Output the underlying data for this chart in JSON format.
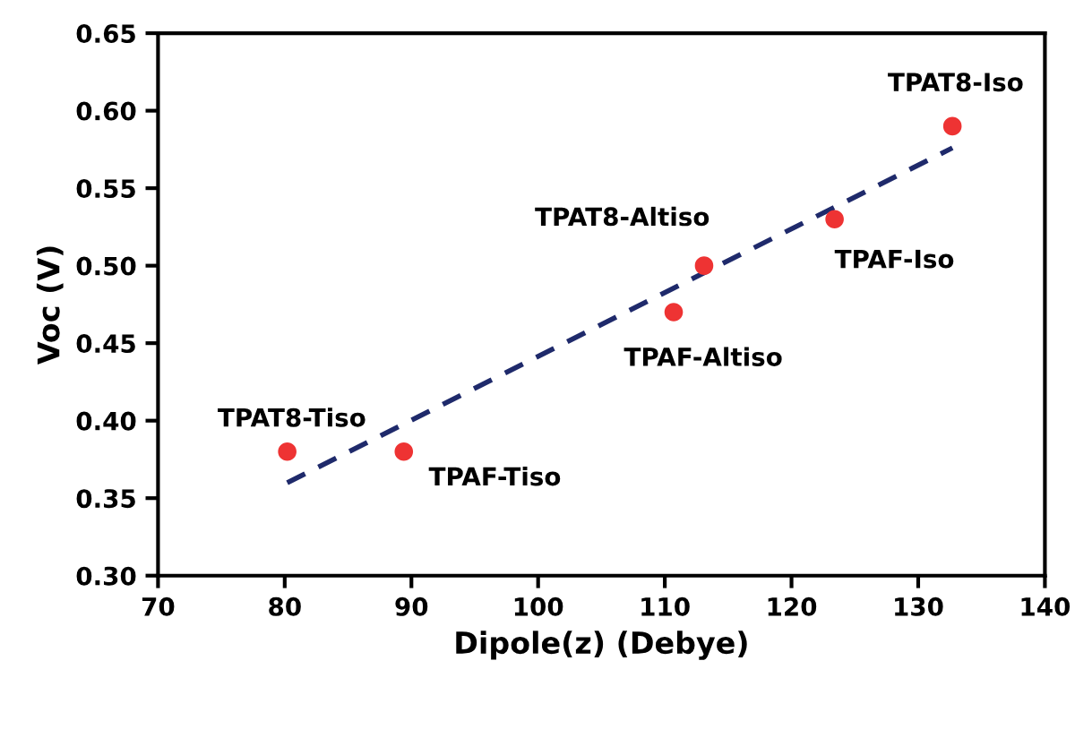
{
  "chart_data": {
    "type": "scatter",
    "xlabel": "Dipole(z) (Debye)",
    "ylabel": "Voc (V)",
    "xlim": [
      70,
      140
    ],
    "xticks": [
      70,
      80,
      90,
      100,
      110,
      120,
      130,
      140
    ],
    "ylim": [
      0.3,
      0.65
    ],
    "yticks": [
      {
        "value": 0.3,
        "label": "0.30"
      },
      {
        "value": 0.35,
        "label": "0.35"
      },
      {
        "value": 0.4,
        "label": "0.40"
      },
      {
        "value": 0.45,
        "label": "0.45"
      },
      {
        "value": 0.5,
        "label": "0.50"
      },
      {
        "value": 0.55,
        "label": "0.55"
      },
      {
        "value": 0.6,
        "label": "0.60"
      },
      {
        "value": 0.65,
        "label": "0.65"
      }
    ],
    "grid": false,
    "legend": false,
    "series": [
      {
        "color": "#ee3333",
        "marker": "circle",
        "x": [
          80.2,
          89.4,
          110.7,
          113.1,
          123.4,
          132.7
        ],
        "values": [
          0.38,
          0.38,
          0.47,
          0.5,
          0.53,
          0.59
        ]
      },
      {
        "type": "line",
        "color": "#1f2a6b",
        "line_style": "dashed",
        "marker": "none",
        "x": [
          80.2,
          132.7
        ],
        "values": [
          0.36,
          0.576
        ]
      }
    ],
    "annotations": [
      {
        "text": "TPAT8-Tiso",
        "x": 80.2,
        "y": 0.38
      },
      {
        "text": "TPAF-Tiso",
        "x": 89.4,
        "y": 0.38
      },
      {
        "text": "TPAF-Altiso",
        "x": 110.7,
        "y": 0.47
      },
      {
        "text": "TPAT8-Altiso",
        "x": 113.1,
        "y": 0.5
      },
      {
        "text": "TPAF-Iso",
        "x": 123.4,
        "y": 0.53
      },
      {
        "text": "TPAT8-Iso",
        "x": 132.7,
        "y": 0.59
      }
    ]
  }
}
